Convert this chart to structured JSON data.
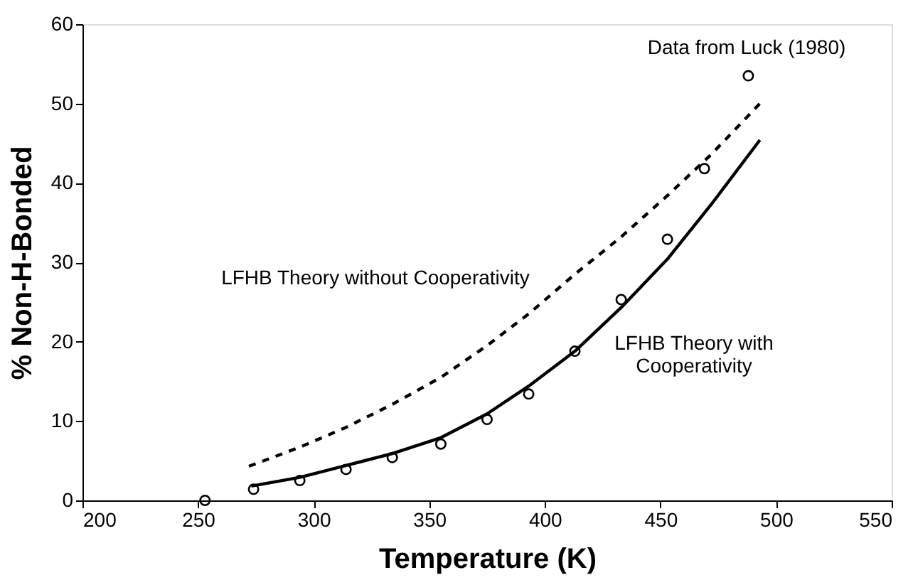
{
  "chart_data": {
    "type": "line",
    "xlabel": "Temperature (K)",
    "ylabel": "% Non-H-Bonded",
    "xlim": [
      200,
      550
    ],
    "xticks": [
      200,
      250,
      300,
      350,
      400,
      450,
      500,
      550
    ],
    "ylim": [
      0,
      60
    ],
    "yticks": [
      0,
      10,
      20,
      30,
      40,
      50,
      60
    ],
    "grid": false,
    "series": [
      {
        "color": "#000000",
        "line_style": "dashed",
        "marker": "none",
        "x": [
          272,
          294,
          314,
          334,
          355,
          375,
          393,
          413,
          433,
          453,
          472,
          493
        ],
        "values": [
          4.3,
          6.7,
          9.2,
          12.1,
          15.5,
          19.5,
          23.5,
          28.5,
          33.2,
          38.4,
          43.6,
          50.0
        ]
      },
      {
        "color": "#000000",
        "line_style": "solid",
        "marker": "none",
        "x": [
          273,
          294,
          314,
          334,
          355,
          375,
          393,
          413,
          433,
          453,
          472,
          493
        ],
        "values": [
          1.8,
          2.9,
          4.4,
          5.9,
          7.9,
          10.9,
          14.4,
          18.8,
          24.3,
          30.4,
          37.3,
          45.4
        ]
      },
      {
        "type": "scatter",
        "color": "#000000",
        "marker": "circle",
        "x": [
          253,
          274,
          294,
          314,
          334,
          355,
          375,
          393,
          413,
          433,
          453,
          469,
          488
        ],
        "values": [
          0,
          1.4,
          2.5,
          3.9,
          5.4,
          7.1,
          10.2,
          13.4,
          18.8,
          25.3,
          32.9,
          41.8,
          53.5
        ]
      }
    ],
    "annotations": [
      "Data from Luck (1980)",
      "LFHB Theory without Cooperativity",
      "LFHB Theory with\nCooperativity"
    ]
  }
}
